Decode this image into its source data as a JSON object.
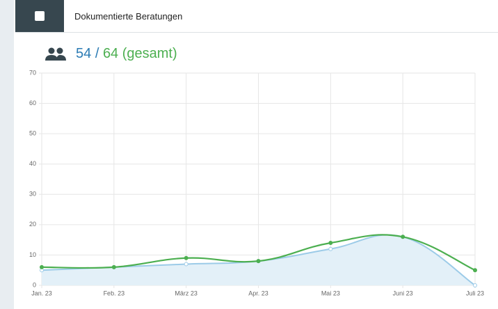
{
  "header": {
    "title": "Dokumentierte Beratungen"
  },
  "summary": {
    "current": "54",
    "separator": "/",
    "total": "64 (gesamt)"
  },
  "chart_data": {
    "type": "line",
    "categories": [
      "Jan. 23",
      "Feb. 23",
      "März 23",
      "Apr. 23",
      "Mai 23",
      "Juni 23",
      "Juli 23"
    ],
    "series": [
      {
        "color": "#9ccbe8",
        "fill": "#e3f0f8",
        "values": [
          5,
          6,
          7,
          8,
          12,
          16,
          0
        ]
      },
      {
        "color": "#4caf50",
        "values": [
          6,
          6,
          9,
          8,
          14,
          16,
          5
        ]
      }
    ],
    "ylim": [
      0,
      70
    ],
    "yticks": [
      0,
      10,
      20,
      30,
      40,
      50,
      60,
      70
    ],
    "grid": true
  }
}
